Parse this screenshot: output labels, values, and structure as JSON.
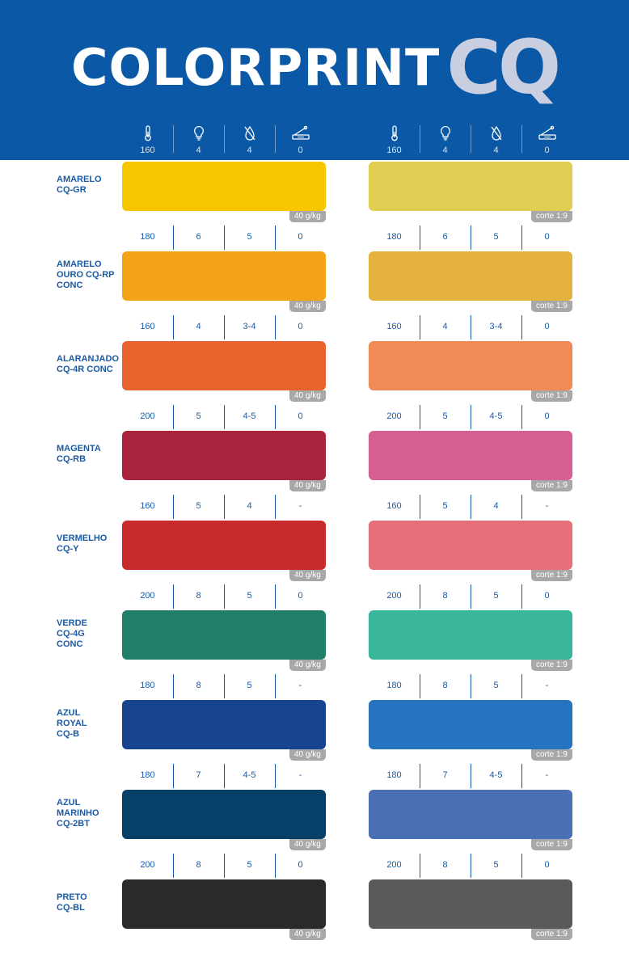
{
  "brand": {
    "name": "COLORPRINT",
    "suffix": "CQ"
  },
  "header_icons": [
    "thermometer-icon",
    "lightbulb-icon",
    "water-drop-icon",
    "cutter-icon"
  ],
  "left_header_values": [
    "160",
    "4",
    "4",
    "0"
  ],
  "right_header_values": [
    "160",
    "4",
    "4",
    "0"
  ],
  "left_tag": "40 g/kg",
  "right_tag": "corte 1:9",
  "rows": [
    {
      "name_lines": [
        "AMARELO",
        "CQ-GR"
      ],
      "params": [
        "",
        "",
        "",
        ""
      ],
      "left_color": "#f6c700",
      "right_color": "#e1cd51"
    },
    {
      "name_lines": [
        "AMARELO",
        "OURO CQ-RP",
        "CONC"
      ],
      "params": [
        "180",
        "6",
        "5",
        "0"
      ],
      "left_color": "#f4a218",
      "right_color": "#e5b23f"
    },
    {
      "name_lines": [
        "ALARANJADO",
        "CQ-4R CONC"
      ],
      "params": [
        "160",
        "4",
        "3-4",
        "0"
      ],
      "left_color": "#e9622e",
      "right_color": "#f08a56"
    },
    {
      "name_lines": [
        "MAGENTA",
        "CQ-RB"
      ],
      "params": [
        "200",
        "5",
        "4-5",
        "0"
      ],
      "left_color": "#aa233d",
      "right_color": "#d65f91"
    },
    {
      "name_lines": [
        "VERMELHO",
        "CQ-Y"
      ],
      "params": [
        "160",
        "5",
        "4",
        "-"
      ],
      "left_color": "#c92b2c",
      "right_color": "#e76f79"
    },
    {
      "name_lines": [
        "VERDE",
        "CQ-4G",
        "CONC"
      ],
      "params": [
        "200",
        "8",
        "5",
        "0"
      ],
      "left_color": "#1f7f68",
      "right_color": "#38b59a"
    },
    {
      "name_lines": [
        "AZUL",
        "ROYAL",
        "CQ-B"
      ],
      "params": [
        "180",
        "8",
        "5",
        "-"
      ],
      "left_color": "#17448f",
      "right_color": "#2674bf"
    },
    {
      "name_lines": [
        "AZUL",
        "MARINHO",
        "CQ-2BT"
      ],
      "params": [
        "180",
        "7",
        "4-5",
        "-"
      ],
      "left_color": "#063f68",
      "right_color": "#4a6fb5"
    },
    {
      "name_lines": [
        "PRETO",
        "CQ-BL"
      ],
      "params": [
        "200",
        "8",
        "5",
        "0"
      ],
      "left_color": "#2a2a2c",
      "right_color": "#5b5a59"
    }
  ]
}
